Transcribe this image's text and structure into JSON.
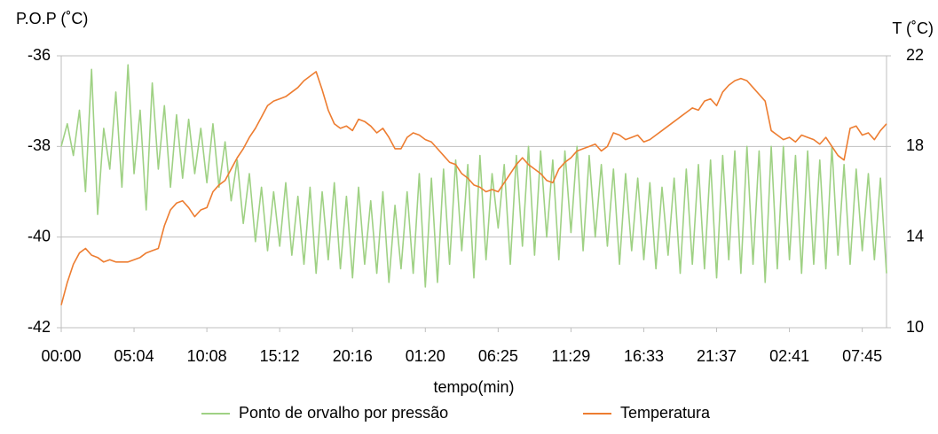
{
  "chart_data": {
    "type": "line",
    "y_label": "P.O.P (˚C)",
    "y2_label": "T (˚C)",
    "x_label": "tempo(min)",
    "categories": [
      "00:00",
      null,
      null,
      null,
      null,
      null,
      null,
      null,
      null,
      null,
      null,
      null,
      "05:04",
      null,
      null,
      null,
      null,
      null,
      null,
      null,
      null,
      null,
      null,
      null,
      "10:08",
      null,
      null,
      null,
      null,
      null,
      null,
      null,
      null,
      null,
      null,
      null,
      "15:12",
      null,
      null,
      null,
      null,
      null,
      null,
      null,
      null,
      null,
      null,
      null,
      "20:16",
      null,
      null,
      null,
      null,
      null,
      null,
      null,
      null,
      null,
      null,
      null,
      "01:20",
      null,
      null,
      null,
      null,
      null,
      null,
      null,
      null,
      null,
      null,
      null,
      "06:25",
      null,
      null,
      null,
      null,
      null,
      null,
      null,
      null,
      null,
      null,
      null,
      "11:29",
      null,
      null,
      null,
      null,
      null,
      null,
      null,
      null,
      null,
      null,
      null,
      "16:33",
      null,
      null,
      null,
      null,
      null,
      null,
      null,
      null,
      null,
      null,
      null,
      "21:37",
      null,
      null,
      null,
      null,
      null,
      null,
      null,
      null,
      null,
      null,
      null,
      "02:41",
      null,
      null,
      null,
      null,
      null,
      null,
      null,
      null,
      null,
      null,
      null,
      "07:45",
      null,
      null,
      null,
      null
    ],
    "ylim": [
      -42,
      -36
    ],
    "yticks": [
      -42,
      -40,
      -38,
      -36
    ],
    "y2lim": [
      10,
      22
    ],
    "y2ticks": [
      10,
      14,
      18,
      22
    ],
    "grid": true,
    "legend": "bottom",
    "series": [
      {
        "name": "Ponto de orvalho por pressão",
        "color": "#9fd184",
        "values": [
          -38.0,
          -37.5,
          -38.2,
          -37.2,
          -39.0,
          -36.3,
          -39.5,
          -37.6,
          -38.5,
          -36.8,
          -38.9,
          -36.2,
          -38.6,
          -37.2,
          -39.4,
          -36.6,
          -38.5,
          -37.1,
          -38.9,
          -37.3,
          -38.7,
          -37.4,
          -38.6,
          -37.6,
          -38.8,
          -37.5,
          -38.9,
          -37.9,
          -39.2,
          -38.3,
          -39.7,
          -38.6,
          -40.1,
          -38.9,
          -40.3,
          -39.0,
          -40.2,
          -38.8,
          -40.4,
          -39.1,
          -40.6,
          -38.9,
          -40.8,
          -39.0,
          -40.5,
          -38.8,
          -40.7,
          -39.1,
          -40.9,
          -38.9,
          -40.6,
          -39.2,
          -40.8,
          -39.0,
          -41.0,
          -39.3,
          -40.7,
          -39.0,
          -40.8,
          -38.6,
          -41.1,
          -38.7,
          -41.0,
          -38.5,
          -40.6,
          -38.3,
          -40.3,
          -38.4,
          -40.9,
          -38.2,
          -40.5,
          -38.6,
          -39.8,
          -38.4,
          -40.6,
          -38.2,
          -40.2,
          -38.0,
          -40.4,
          -38.1,
          -40.0,
          -38.3,
          -40.5,
          -38.1,
          -39.9,
          -38.0,
          -40.3,
          -38.2,
          -40.0,
          -38.4,
          -40.2,
          -38.5,
          -40.6,
          -38.6,
          -40.3,
          -38.7,
          -40.5,
          -38.8,
          -40.7,
          -38.9,
          -40.4,
          -38.7,
          -40.8,
          -38.5,
          -40.6,
          -38.4,
          -40.7,
          -38.3,
          -40.9,
          -38.2,
          -40.5,
          -38.1,
          -40.8,
          -38.0,
          -40.6,
          -38.1,
          -41.0,
          -38.0,
          -40.7,
          -38.0,
          -40.5,
          -38.2,
          -40.8,
          -38.1,
          -40.6,
          -38.3,
          -40.7,
          -38.0,
          -40.4,
          -38.4,
          -40.6,
          -38.5,
          -40.3,
          -38.6,
          -40.5,
          -38.7,
          -40.8
        ]
      },
      {
        "name": "Temperatura",
        "color": "#ed7d31",
        "axis": "y2",
        "values": [
          11.0,
          12.0,
          12.8,
          13.3,
          13.5,
          13.2,
          13.1,
          12.9,
          13.0,
          12.9,
          12.9,
          12.9,
          13.0,
          13.1,
          13.3,
          13.4,
          13.5,
          14.5,
          15.2,
          15.5,
          15.6,
          15.3,
          14.9,
          15.2,
          15.3,
          16.0,
          16.3,
          16.5,
          17.0,
          17.5,
          17.9,
          18.4,
          18.8,
          19.3,
          19.8,
          20.0,
          20.1,
          20.2,
          20.4,
          20.6,
          20.9,
          21.1,
          21.3,
          20.5,
          19.6,
          19.0,
          18.8,
          18.9,
          18.7,
          19.2,
          19.1,
          18.9,
          18.6,
          18.8,
          18.4,
          17.9,
          17.9,
          18.4,
          18.6,
          18.5,
          18.3,
          18.2,
          17.9,
          17.6,
          17.3,
          17.2,
          16.8,
          16.6,
          16.3,
          16.2,
          16.0,
          16.1,
          16.0,
          16.4,
          16.8,
          17.2,
          17.5,
          17.2,
          17.0,
          16.8,
          16.5,
          16.4,
          17.0,
          17.3,
          17.5,
          17.8,
          17.9,
          18.0,
          18.1,
          17.8,
          18.0,
          18.6,
          18.5,
          18.3,
          18.4,
          18.5,
          18.2,
          18.3,
          18.5,
          18.7,
          18.9,
          19.1,
          19.3,
          19.5,
          19.7,
          19.6,
          20.0,
          20.1,
          19.8,
          20.4,
          20.7,
          20.9,
          21.0,
          20.9,
          20.6,
          20.3,
          20.0,
          18.7,
          18.5,
          18.3,
          18.4,
          18.2,
          18.5,
          18.4,
          18.3,
          18.1,
          18.4,
          18.0,
          17.6,
          17.4,
          18.8,
          18.9,
          18.5,
          18.6,
          18.3,
          18.7,
          19.0
        ]
      }
    ]
  }
}
